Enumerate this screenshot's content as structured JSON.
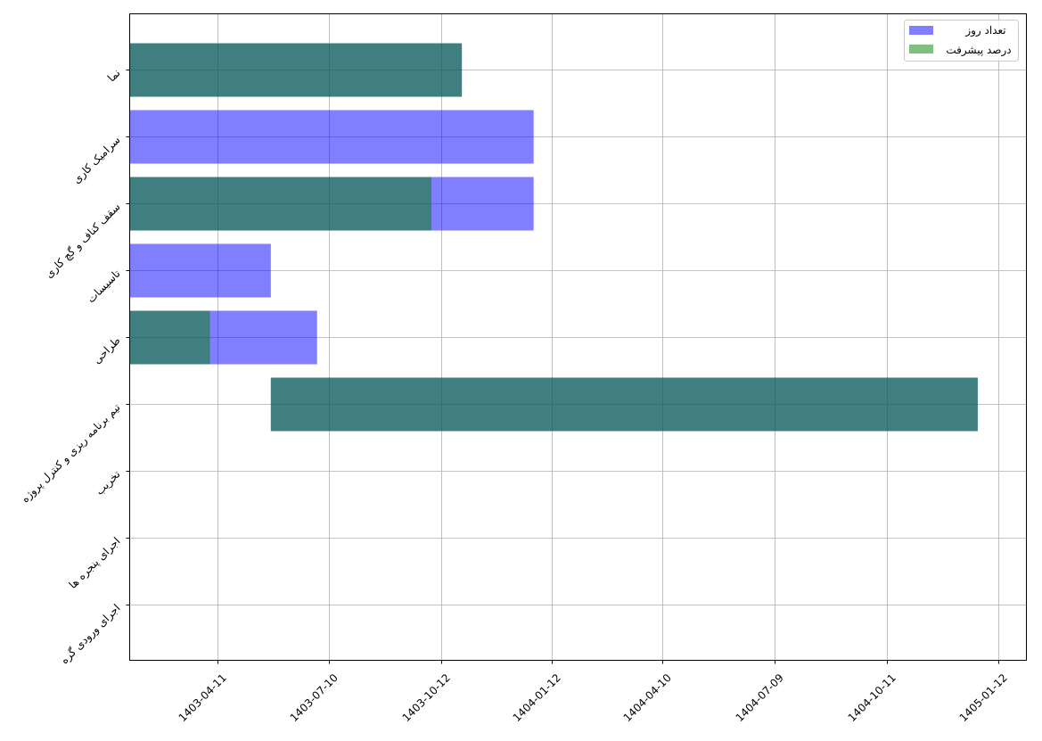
{
  "chart_data": {
    "type": "bar",
    "orientation": "horizontal",
    "title": "",
    "xlabel": "",
    "ylabel": "",
    "x_unit": "days relative to 1403-04-11",
    "xlim": [
      -72,
      665
    ],
    "grid": true,
    "legend_position": "top-right",
    "legend": [
      {
        "label": "تعداد روز",
        "color": "#0000ff",
        "alpha": 0.5
      },
      {
        "label": "درصد پیشرفت",
        "color": "#008000",
        "alpha": 0.5
      }
    ],
    "xticks": [
      {
        "label": "1403-04-11",
        "value": 0
      },
      {
        "label": "1403-07-10",
        "value": 92
      },
      {
        "label": "1403-10-12",
        "value": 184
      },
      {
        "label": "1404-01-12",
        "value": 275
      },
      {
        "label": "1404-04-10",
        "value": 366
      },
      {
        "label": "1404-07-09",
        "value": 458
      },
      {
        "label": "1404-10-11",
        "value": 550
      },
      {
        "label": "1405-01-12",
        "value": 642
      }
    ],
    "tasks": [
      {
        "name": "نما",
        "start": -72,
        "end": 201,
        "progress_end": 201
      },
      {
        "name": "سرامیک کاری",
        "start": -72,
        "end": 260,
        "progress_end": null
      },
      {
        "name": "سقف کناف و گچ کاری",
        "start": -72,
        "end": 260,
        "progress_end": 176
      },
      {
        "name": "تاسیسات",
        "start": -72,
        "end": 44,
        "progress_end": null
      },
      {
        "name": "طراحی",
        "start": -72,
        "end": 82,
        "progress_end": -6
      },
      {
        "name": "تیم برنامه ریزی و کنترل پروژه",
        "start": 44,
        "end": 625,
        "progress_end": 625
      },
      {
        "name": "تخریب",
        "start": null,
        "end": null,
        "progress_end": null
      },
      {
        "name": "اجرای پنجره ها",
        "start": null,
        "end": null,
        "progress_end": null
      },
      {
        "name": "اجرای ورودی گره",
        "start": null,
        "end": null,
        "progress_end": null
      }
    ]
  }
}
